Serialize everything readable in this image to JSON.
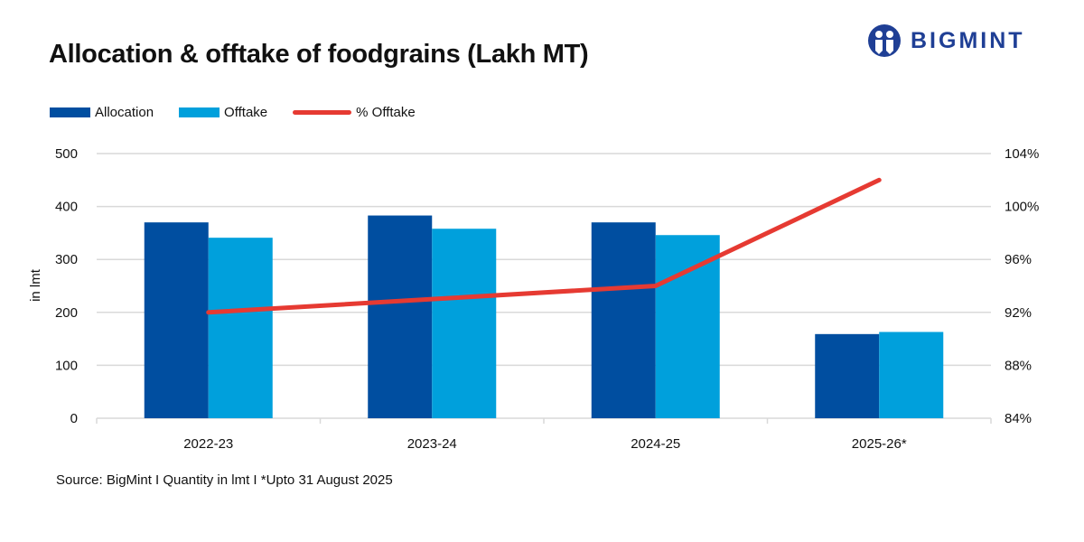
{
  "chart_data": {
    "type": "bar",
    "title": "Allocation & offtake of foodgrains (Lakh MT)",
    "ylabel": "in lmt",
    "ylim": [
      0,
      500
    ],
    "yticks": [
      "0",
      "100",
      "200",
      "300",
      "400",
      "500"
    ],
    "y2lim": [
      84,
      104
    ],
    "y2ticks": [
      "84%",
      "88%",
      "92%",
      "96%",
      "100%",
      "104%"
    ],
    "categories": [
      "2022-23",
      "2023-24",
      "2024-25",
      "2025-26*"
    ],
    "series": [
      {
        "name": "Allocation",
        "kind": "bar",
        "axis": "left",
        "color": "#004ea0",
        "values": [
          370,
          383,
          370,
          159
        ]
      },
      {
        "name": "Offtake",
        "kind": "bar",
        "axis": "left",
        "color": "#00a0dc",
        "values": [
          341,
          358,
          346,
          163
        ]
      },
      {
        "name": "% Offtake",
        "kind": "line",
        "axis": "right",
        "color": "#e63a32",
        "values": [
          92.0,
          93.0,
          94.0,
          102.0
        ]
      }
    ],
    "grid": true,
    "legend": "top-left"
  },
  "brand": {
    "name": "BIGMINT",
    "color": "#1f3f95"
  },
  "source": "Source: BigMint I Quantity in lmt I *Upto 31 August 2025"
}
